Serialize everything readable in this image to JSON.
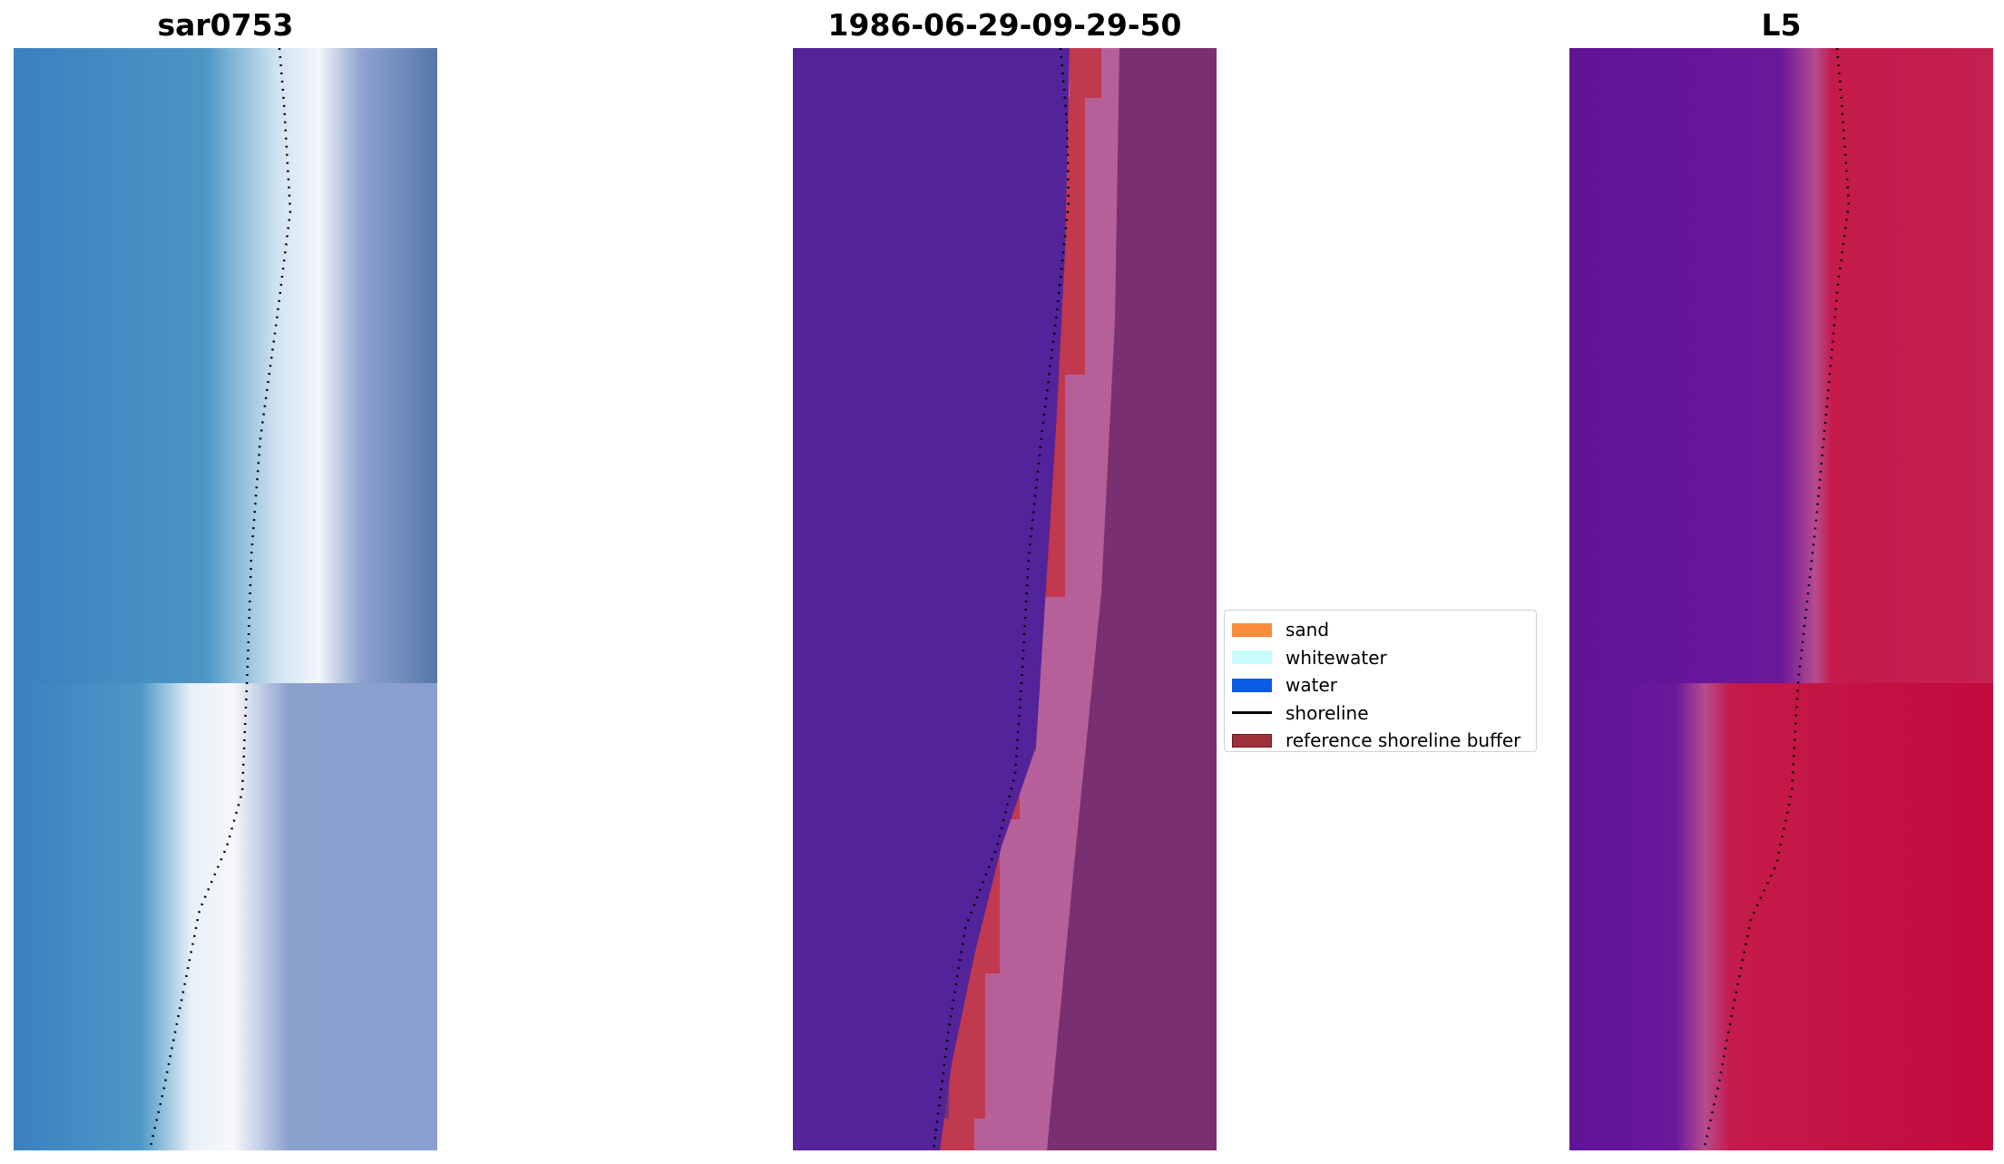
{
  "panels": [
    {
      "title": "sar0753"
    },
    {
      "title": "1986-06-29-09-29-50"
    },
    {
      "title": "L5"
    }
  ],
  "legend": {
    "items": [
      {
        "label": "sand",
        "color": "#f88c3a",
        "kind": "patch"
      },
      {
        "label": "whitewater",
        "color": "#c8fcfc",
        "kind": "patch"
      },
      {
        "label": "water",
        "color": "#0a5ce6",
        "kind": "patch"
      },
      {
        "label": "shoreline",
        "color": "#000000",
        "kind": "line"
      },
      {
        "label": "reference shoreline buffer",
        "color": "#9e3039",
        "kind": "patch",
        "edge": "#6b1d24"
      }
    ]
  },
  "colors": {
    "rgb_water": "#3f84c1",
    "rgb_whitewater": "#eef4fb",
    "rgb_sand": "#5f7fb0",
    "class_water": "#53239a",
    "class_sand": "#b6609a",
    "class_buffer": "#c0394f",
    "class_land": "#7a2f70",
    "mndwi_water": "#66189a",
    "mndwi_land": "#c51a4a",
    "shoreline": "#000000"
  }
}
